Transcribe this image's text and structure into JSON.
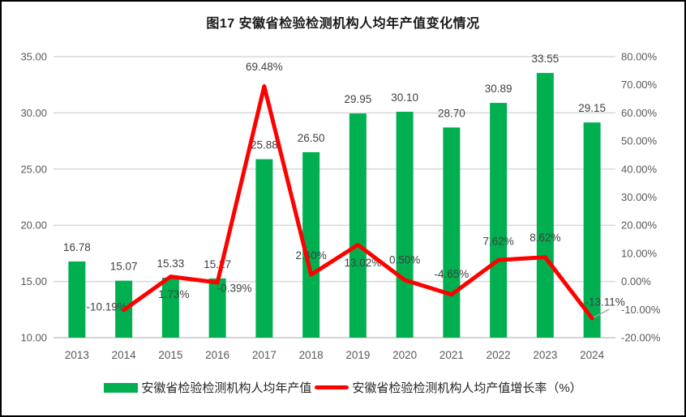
{
  "title": "图17 安徽省检验检测机构人均年产值变化情况",
  "colors": {
    "bar": "#00B050",
    "line": "#FF0000",
    "grid": "#D9D9D9",
    "axis_line": "#C6C6C6",
    "axis_text": "#595959",
    "label_text": "#404040",
    "leader": "#A6A6A6"
  },
  "legend": {
    "bar_label": "安徽省检验检测机构人均年产值",
    "line_label": "安徽省检验检测机构人均产值增长率（%）"
  },
  "chart_data": {
    "type": "bar+line combo",
    "title": "图17 安徽省检验检测机构人均年产值变化情况",
    "categories": [
      "2013",
      "2014",
      "2015",
      "2016",
      "2017",
      "2018",
      "2019",
      "2020",
      "2021",
      "2022",
      "2023",
      "2024"
    ],
    "series": [
      {
        "name": "安徽省检验检测机构人均年产值",
        "type": "bar",
        "axis": "left",
        "values": [
          16.78,
          15.07,
          15.33,
          15.27,
          25.88,
          26.5,
          29.95,
          30.1,
          28.7,
          30.89,
          33.55,
          29.15
        ],
        "labels": [
          "16.78",
          "15.07",
          "15.33",
          "15.27",
          "25.88",
          "26.50",
          "29.95",
          "30.10",
          "28.70",
          "30.89",
          "33.55",
          "29.15"
        ]
      },
      {
        "name": "安徽省检验检测机构人均产值增长率（%）",
        "type": "line",
        "axis": "right",
        "values": [
          null,
          -10.19,
          1.73,
          -0.39,
          69.48,
          2.4,
          13.02,
          0.5,
          -4.65,
          7.62,
          8.62,
          -13.11
        ],
        "labels": [
          null,
          "-10.19%",
          "1.73%",
          "-0.39%",
          "69.48%",
          "2.40%",
          "13.02%",
          "0.50%",
          "-4.65%",
          "7.62%",
          "8.62%",
          "-13.11%"
        ]
      }
    ],
    "left_axis": {
      "min": 10,
      "max": 35,
      "step": 5,
      "tick_labels": [
        "35.00",
        "30.00",
        "25.00",
        "20.00",
        "15.00",
        "10.00"
      ]
    },
    "right_axis": {
      "min": -20,
      "max": 80,
      "step": 10,
      "tick_labels": [
        "80.00%",
        "70.00%",
        "60.00%",
        "50.00%",
        "40.00%",
        "30.00%",
        "20.00%",
        "10.00%",
        "0.00%",
        "-10.00%",
        "-20.00%"
      ]
    },
    "grid": true,
    "legend_position": "bottom"
  }
}
